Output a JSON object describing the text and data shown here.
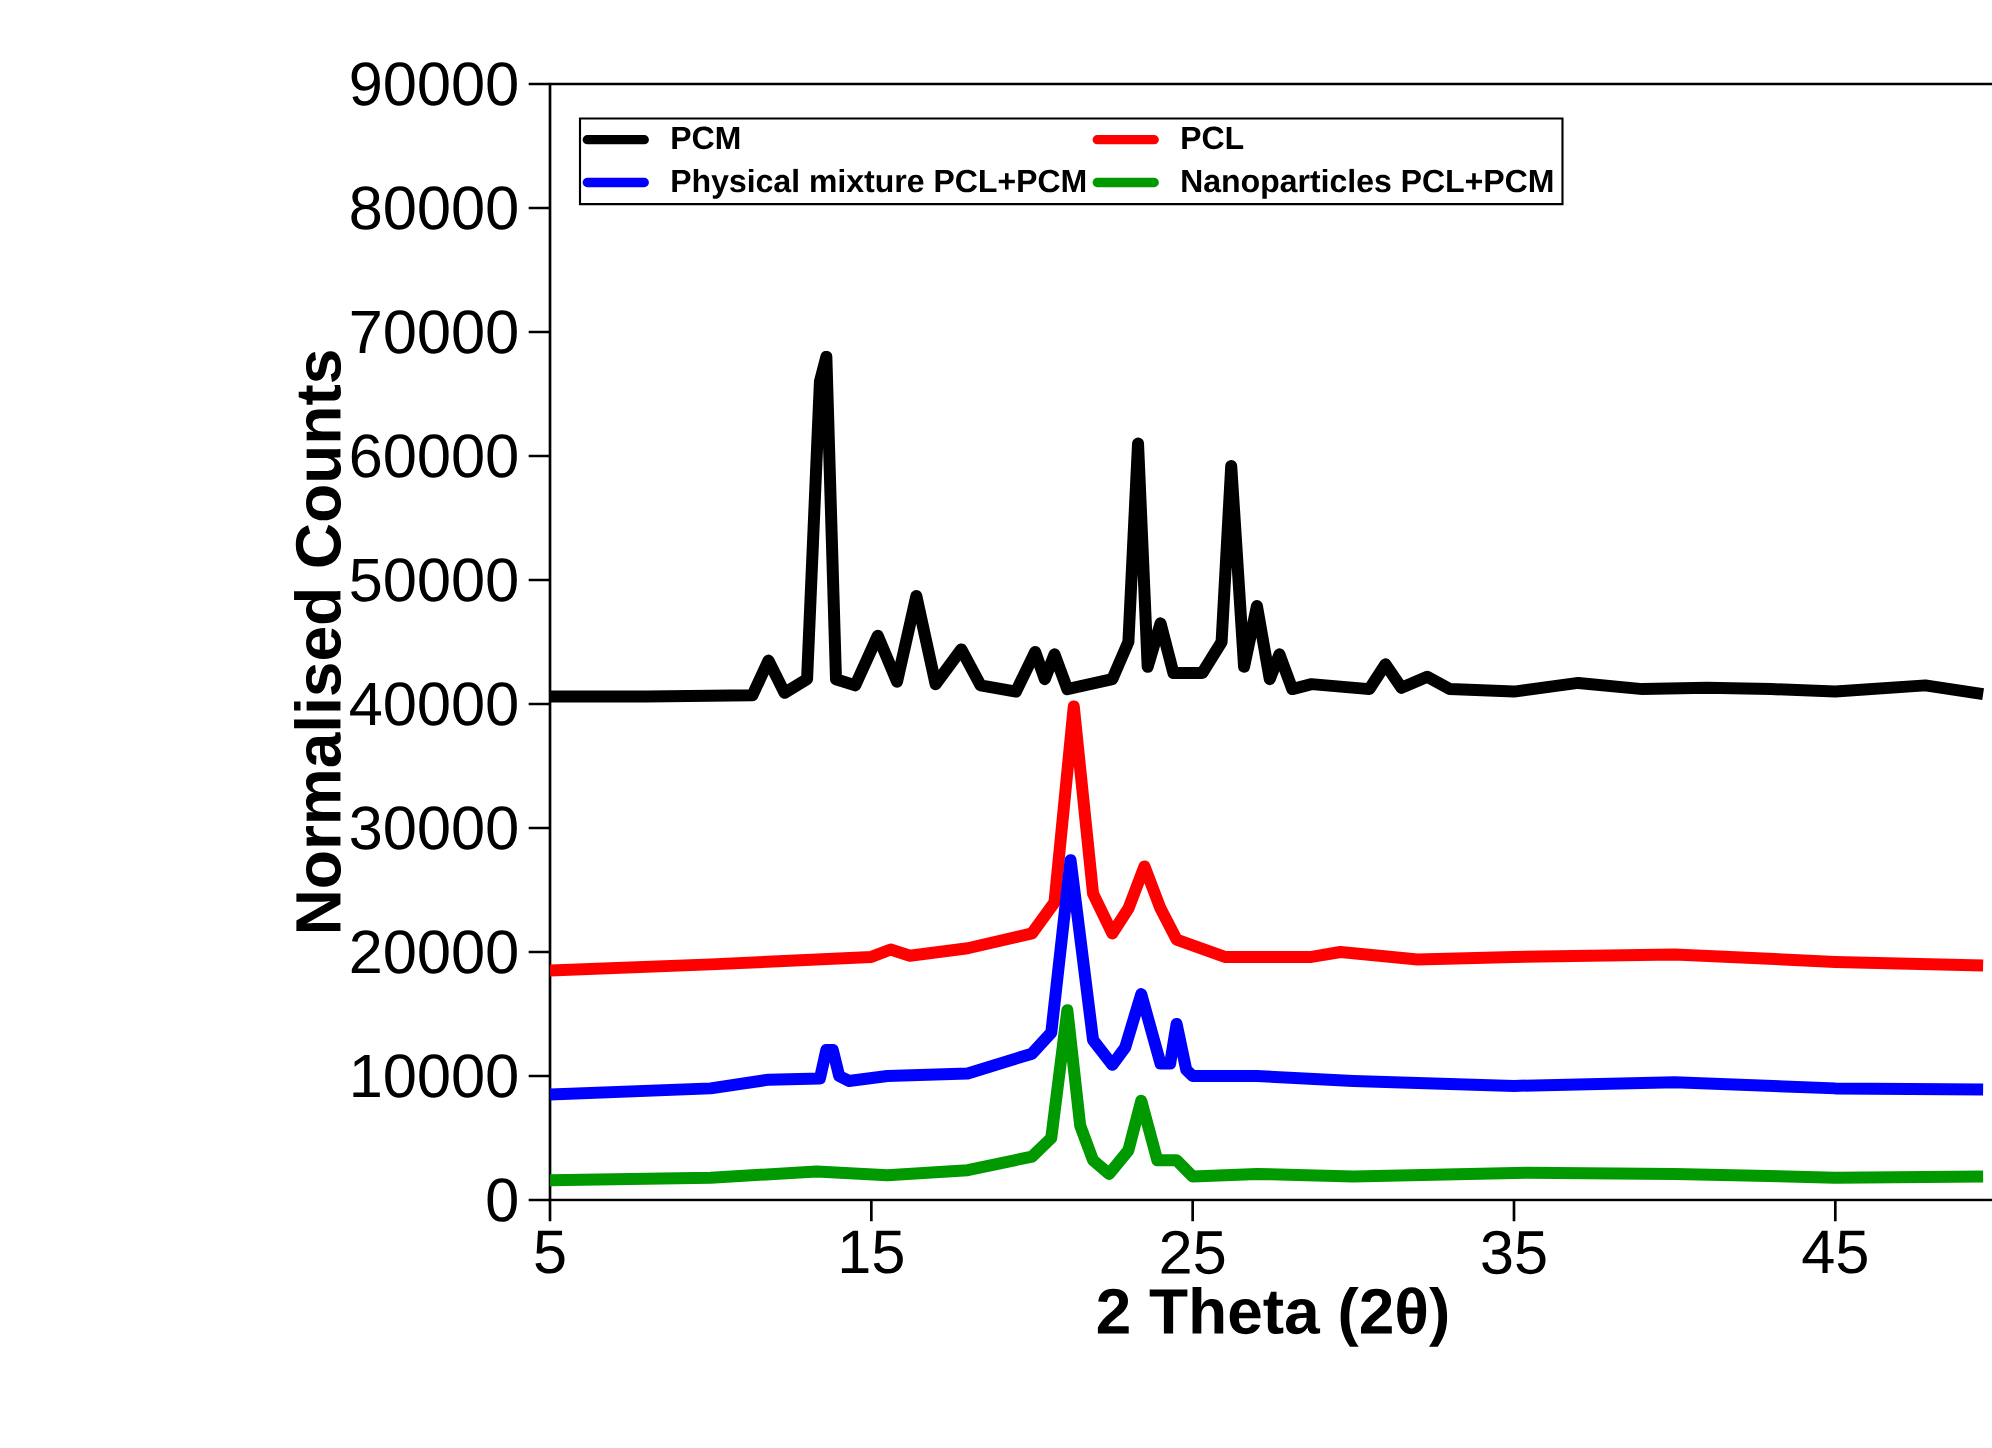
{
  "chart_data": {
    "type": "line",
    "xlabel": "2 Theta (2θ)",
    "ylabel": "Normalised Counts",
    "xlim": [
      5,
      50
    ],
    "xticks": [
      5,
      15,
      25,
      35,
      45
    ],
    "ylim": [
      0,
      90000
    ],
    "yticks": [
      0,
      10000,
      20000,
      30000,
      40000,
      50000,
      60000,
      70000,
      80000,
      90000
    ],
    "grid": false,
    "legend": "top",
    "line_style": "solid",
    "marker": "none",
    "series": [
      {
        "name": "PCM",
        "color": "#000000",
        "x": [
          5,
          8,
          11.3,
          11.8,
          12.3,
          13.0,
          13.4,
          13.6,
          13.9,
          14.5,
          15.2,
          15.8,
          16.4,
          17.0,
          17.8,
          18.4,
          19.5,
          20.1,
          20.4,
          20.7,
          21.1,
          22.5,
          23.0,
          23.3,
          23.6,
          24.0,
          24.4,
          25.3,
          25.9,
          26.2,
          26.6,
          27.0,
          27.4,
          27.7,
          28.1,
          28.7,
          30.5,
          31.0,
          31.5,
          32.3,
          33,
          35,
          37.0,
          39,
          41,
          43,
          45,
          47.8,
          49.6
        ],
        "values": [
          40600,
          40600,
          40700,
          43500,
          40900,
          42000,
          66000,
          68000,
          42000,
          41500,
          45500,
          41800,
          48700,
          41600,
          44400,
          41500,
          41000,
          44200,
          42000,
          44000,
          41200,
          42000,
          45000,
          61000,
          43000,
          46500,
          42500,
          42500,
          45000,
          59200,
          43000,
          47900,
          42000,
          44000,
          41200,
          41600,
          41200,
          43200,
          41300,
          42200,
          41200,
          41000,
          41700,
          41200,
          41300,
          41200,
          41000,
          41500,
          40800
        ]
      },
      {
        "name": "PCL",
        "color": "#ff0000",
        "x": [
          5,
          10,
          15.0,
          15.6,
          16.2,
          18,
          20.0,
          20.7,
          21.3,
          21.9,
          22.5,
          23.0,
          23.5,
          24.0,
          24.5,
          26,
          28.7,
          29.6,
          32,
          35,
          40,
          45,
          49.6
        ],
        "values": [
          18500,
          19000,
          19600,
          20200,
          19700,
          20300,
          21500,
          24000,
          39800,
          24700,
          21500,
          23500,
          26900,
          23500,
          21000,
          19600,
          19600,
          20000,
          19400,
          19600,
          19800,
          19200,
          18900
        ]
      },
      {
        "name": "Physical mixture PCL+PCM",
        "color": "#0000ff",
        "x": [
          5,
          10,
          11.8,
          13.4,
          13.6,
          13.8,
          14.0,
          14.3,
          15.5,
          18,
          20.0,
          20.6,
          21.2,
          21.9,
          22.5,
          22.9,
          23.4,
          24.0,
          24.3,
          24.5,
          24.8,
          25.0,
          27.0,
          30,
          35,
          40,
          45,
          49.6
        ],
        "values": [
          8500,
          9000,
          9700,
          9800,
          12100,
          12100,
          10000,
          9600,
          10000,
          10200,
          11800,
          13500,
          27400,
          12900,
          10900,
          12300,
          16600,
          11000,
          11000,
          14200,
          10500,
          10000,
          10000,
          9600,
          9200,
          9500,
          9000,
          8900
        ]
      },
      {
        "name": "Nanoparticles PCL+PCM",
        "color": "#009900",
        "x": [
          5,
          10,
          13.3,
          15.5,
          18,
          20.0,
          20.6,
          21.1,
          21.5,
          21.9,
          22.4,
          23.0,
          23.4,
          23.9,
          24.5,
          25.0,
          27.0,
          30,
          35.4,
          40,
          45,
          49.6
        ],
        "values": [
          1600,
          1800,
          2300,
          2000,
          2400,
          3500,
          5000,
          15300,
          6000,
          3200,
          2100,
          4000,
          8000,
          3200,
          3200,
          1900,
          2100,
          1900,
          2200,
          2100,
          1800,
          1900
        ]
      }
    ]
  }
}
